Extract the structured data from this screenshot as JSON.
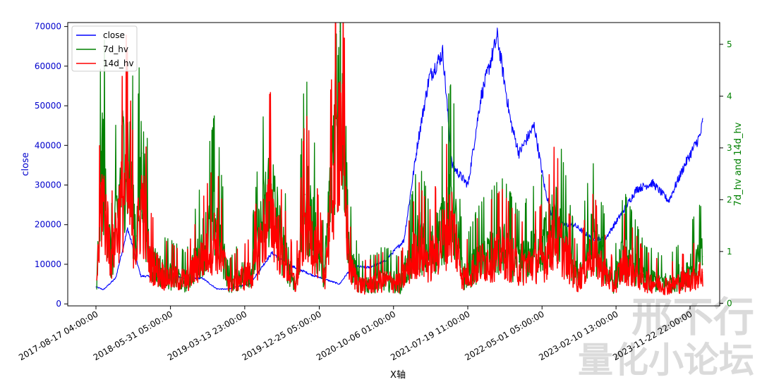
{
  "chart_data": {
    "type": "line",
    "xlabel": "X轴",
    "ylabel_left": "close",
    "ylabel_right": "7d_hv and 14d_hv",
    "left_color": "#0000cc",
    "right_color": "#008000",
    "ylim_left": [
      -500,
      71000
    ],
    "ylim_right": [
      -0.05,
      5.42
    ],
    "yticks_left": [
      "0",
      "10000",
      "20000",
      "30000",
      "40000",
      "50000",
      "60000",
      "70000"
    ],
    "yticks_right": [
      "0",
      "1",
      "2",
      "3",
      "4",
      "5"
    ],
    "xticks": [
      "2017-08-17 04:00:00",
      "2018-05-31 05:00:00",
      "2019-03-13 23:00:00",
      "2019-12-25 05:00:00",
      "2020-10-06 01:00:00",
      "2021-07-19 11:00:00",
      "2022-05-01 05:00:00",
      "2023-02-10 13:00:00",
      "2023-11-22 22:00:00"
    ],
    "legend_position": "upper-left",
    "series": [
      {
        "name": "close",
        "color": "#0000ff",
        "axis": "left",
        "x": [
          "2017-08-17",
          "2017-09-15",
          "2017-11-01",
          "2017-12-17",
          "2018-02-06",
          "2018-04-01",
          "2018-06-01",
          "2018-08-01",
          "2018-10-01",
          "2018-11-25",
          "2019-01-01",
          "2019-04-01",
          "2019-06-26",
          "2019-09-01",
          "2019-12-01",
          "2020-03-12",
          "2020-05-01",
          "2020-07-01",
          "2020-09-01",
          "2020-11-15",
          "2021-01-08",
          "2021-02-20",
          "2021-04-14",
          "2021-05-19",
          "2021-07-20",
          "2021-09-07",
          "2021-11-10",
          "2021-12-31",
          "2022-02-01",
          "2022-04-01",
          "2022-05-12",
          "2022-06-18",
          "2022-09-01",
          "2022-11-09",
          "2023-01-01",
          "2023-03-15",
          "2023-05-01",
          "2023-07-01",
          "2023-09-01",
          "2023-11-01",
          "2023-12-31",
          "2024-01-10"
        ],
        "values": [
          4300,
          3600,
          6500,
          19000,
          7000,
          7000,
          7500,
          6300,
          6500,
          3800,
          3700,
          5000,
          12900,
          9800,
          7200,
          5000,
          9500,
          9200,
          10700,
          16000,
          41000,
          57000,
          63500,
          35000,
          30000,
          52000,
          67500,
          46000,
          38000,
          45000,
          29000,
          20000,
          20000,
          16500,
          16600,
          24000,
          29000,
          30500,
          26000,
          35000,
          42500,
          46000
        ]
      },
      {
        "name": "7d_hv",
        "color": "#008000",
        "axis": "right",
        "x": [
          "2017-08-20",
          "2017-09-10",
          "2017-10-15",
          "2017-12-10",
          "2018-01-20",
          "2018-02-10",
          "2018-03-10",
          "2018-05-01",
          "2018-08-01",
          "2018-11-20",
          "2019-01-15",
          "2019-04-10",
          "2019-06-20",
          "2019-08-01",
          "2019-09-25",
          "2019-11-01",
          "2020-01-15",
          "2020-03-13",
          "2020-04-20",
          "2020-06-01",
          "2020-09-01",
          "2020-11-01",
          "2021-01-11",
          "2021-02-20",
          "2021-05-19",
          "2021-07-01",
          "2021-09-07",
          "2021-12-04",
          "2022-02-01",
          "2022-05-12",
          "2022-06-18",
          "2022-09-15",
          "2022-11-09",
          "2023-02-01",
          "2023-03-13",
          "2023-06-01",
          "2023-09-01",
          "2023-11-01",
          "2024-01-10"
        ],
        "values": [
          0.35,
          2.85,
          0.8,
          3.2,
          1.3,
          2.9,
          0.9,
          0.6,
          0.45,
          1.7,
          0.4,
          0.7,
          2.3,
          1.2,
          0.35,
          2.1,
          0.6,
          5.25,
          0.9,
          0.35,
          0.5,
          0.4,
          1.3,
          0.9,
          2.0,
          0.5,
          0.9,
          1.1,
          0.8,
          1.2,
          1.7,
          0.5,
          1.3,
          0.4,
          1.0,
          0.5,
          0.4,
          0.6,
          0.9
        ]
      },
      {
        "name": "14d_hv",
        "color": "#ff0000",
        "axis": "right",
        "x": [
          "2017-08-20",
          "2017-09-10",
          "2017-10-15",
          "2017-12-10",
          "2018-01-20",
          "2018-02-10",
          "2018-03-10",
          "2018-05-01",
          "2018-08-01",
          "2018-11-20",
          "2019-01-15",
          "2019-04-10",
          "2019-06-20",
          "2019-08-01",
          "2019-09-25",
          "2019-11-01",
          "2020-01-15",
          "2020-03-13",
          "2020-04-20",
          "2020-06-01",
          "2020-09-01",
          "2020-11-01",
          "2021-01-11",
          "2021-02-20",
          "2021-05-19",
          "2021-07-01",
          "2021-09-07",
          "2021-12-04",
          "2022-02-01",
          "2022-05-12",
          "2022-06-18",
          "2022-09-15",
          "2022-11-09",
          "2023-02-01",
          "2023-03-13",
          "2023-06-01",
          "2023-09-01",
          "2023-11-01",
          "2024-01-10"
        ],
        "values": [
          0.45,
          2.2,
          0.9,
          2.4,
          1.1,
          2.1,
          0.85,
          0.55,
          0.45,
          1.3,
          0.4,
          0.6,
          1.9,
          1.0,
          0.35,
          1.7,
          0.55,
          3.8,
          0.7,
          0.35,
          0.45,
          0.4,
          1.1,
          0.8,
          1.6,
          0.5,
          0.8,
          1.0,
          0.7,
          0.9,
          1.4,
          0.45,
          1.0,
          0.35,
          0.8,
          0.45,
          0.35,
          0.45,
          0.6
        ]
      }
    ]
  },
  "watermark": {
    "line1": "邢不行",
    "line2": "量化小论坛",
    "color": "#cccccc"
  }
}
